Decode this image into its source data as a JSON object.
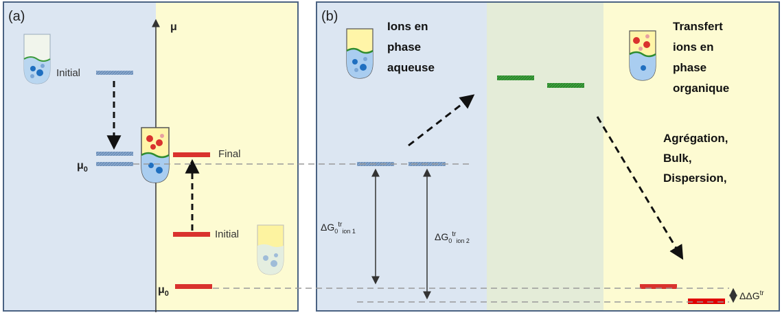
{
  "panel_a": {
    "label": "(a)",
    "axis_label": "μ",
    "initial_left": "Initial",
    "final_label": "Final",
    "initial_right": "Initial",
    "mu0_left": "μ",
    "mu0_left_sub": "0",
    "mu0_right": "μ",
    "mu0_right_sub": "0"
  },
  "panel_b": {
    "label": "(b)",
    "aqueous_title": [
      "Ions en",
      "phase",
      "aqueuse"
    ],
    "organic_title": [
      "Transfert",
      "ions en",
      "phase",
      "organique"
    ],
    "process_list": [
      "Agrégation,",
      "Bulk,",
      "Dispersion,"
    ],
    "dg_ion1": {
      "base": "ΔG",
      "sub0": "0",
      "sup": "tr",
      "sub": "ion 1"
    },
    "dg_ion2": {
      "base": "ΔG",
      "sub0": "0",
      "sup": "tr",
      "sub": "ion 2"
    },
    "ddg": {
      "base": "ΔΔG",
      "sup": "tr"
    }
  },
  "colors": {
    "aqueous_bg": "#dce6f2",
    "organic_bg": "#fdfbd2",
    "interface_bg": "#e4ecd8",
    "frame": "#4a6282",
    "blue_level": "#7f9fc4",
    "red_level": "#d9322e",
    "green_level": "#3a9a3a",
    "dashed_guide": "#999999"
  }
}
